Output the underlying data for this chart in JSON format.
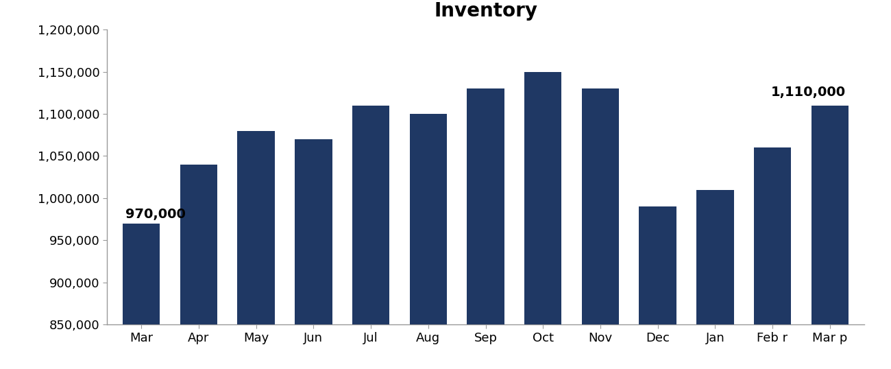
{
  "title": "Inventory",
  "categories": [
    "Mar",
    "Apr",
    "May",
    "Jun",
    "Jul",
    "Aug",
    "Sep",
    "Oct",
    "Nov",
    "Dec",
    "Jan",
    "Feb r",
    "Mar p"
  ],
  "values": [
    970000,
    1040000,
    1080000,
    1070000,
    1110000,
    1100000,
    1130000,
    1150000,
    1130000,
    990000,
    1010000,
    1060000,
    1110000
  ],
  "bar_color": "#1F3864",
  "ylim": [
    850000,
    1200000
  ],
  "yticks": [
    850000,
    900000,
    950000,
    1000000,
    1050000,
    1100000,
    1150000,
    1200000
  ],
  "label_first": "970,000",
  "label_last": "1,110,000",
  "background_color": "#ffffff",
  "title_fontsize": 20,
  "tick_fontsize": 13,
  "bar_label_fontsize": 14,
  "spine_color": "#999999"
}
